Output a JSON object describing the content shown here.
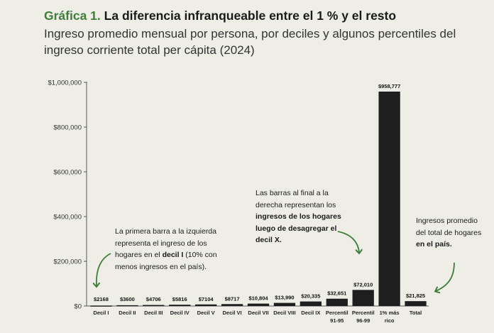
{
  "header": {
    "figure_label": "Gráfica 1.",
    "title": "La diferencia infranqueable entre el 1 % y el resto",
    "subtitle": "Ingreso promedio mensual por persona, por deciles y algunos percentiles del ingreso corriente total per cápita (2024)"
  },
  "annotations": {
    "left": {
      "text1": "La primera barra a la izquierda representa el ingreso de los hogares en el ",
      "bold": "decil I",
      "text2": " (10% con menos ingresos en el país)."
    },
    "middle": {
      "text1": "Las barras al final a la derecha representan los ",
      "bold": "ingresos de los hogares luego de desagregar el decil X."
    },
    "right": {
      "text1": "Ingresos promedio del total de hogares ",
      "bold": "en el país."
    }
  },
  "colors": {
    "bar": "#1e1e1e",
    "accent": "#3e7d3a",
    "background": "#eeeee6"
  },
  "chart_data": {
    "type": "bar",
    "categories": [
      "Decil I",
      "Decil II",
      "Decil III",
      "Decil IV",
      "Decil V",
      "Decil VI",
      "Decil VII",
      "Decil VIII",
      "Decil IX",
      "Percentil 91-95",
      "Percentil 96-99",
      "1% más rico",
      "Total"
    ],
    "values": [
      2168,
      3600,
      4706,
      5816,
      7104,
      8717,
      10804,
      13990,
      20335,
      32651,
      72010,
      958777,
      21825
    ],
    "value_labels": [
      "$2168",
      "$3600",
      "$4706",
      "$5816",
      "$7104",
      "$8717",
      "$10,804",
      "$13,990",
      "$20,335",
      "$32,651",
      "$72,010",
      "$958,777",
      "$21,825"
    ],
    "yticks": [
      0,
      200000,
      400000,
      600000,
      800000,
      1000000
    ],
    "ytick_labels": [
      "$0",
      "$200,000",
      "$400,000",
      "$600,000",
      "$800,000",
      "$1,000,000"
    ],
    "ylim": [
      0,
      1000000
    ],
    "xlabel": "",
    "ylabel": "",
    "grid": false
  }
}
